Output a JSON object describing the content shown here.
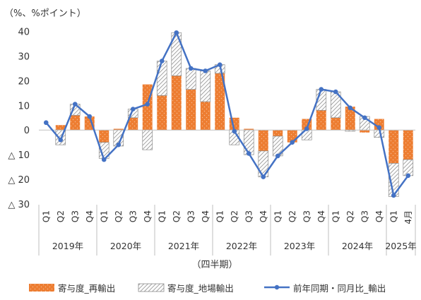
{
  "chart_data": {
    "type": "bar",
    "unit_label": "（%、%ポイント）",
    "xlabel": "（四半期）",
    "ylim": [
      -30,
      40
    ],
    "y_ticks": [
      {
        "value": 40,
        "label": "40"
      },
      {
        "value": 30,
        "label": "30"
      },
      {
        "value": 20,
        "label": "20"
      },
      {
        "value": 10,
        "label": "10"
      },
      {
        "value": 0,
        "label": "0"
      },
      {
        "value": -10,
        "label": "△ 10"
      },
      {
        "value": -20,
        "label": "△ 20"
      },
      {
        "value": -30,
        "label": "△ 30"
      }
    ],
    "categories": [
      "Q1",
      "Q2",
      "Q3",
      "Q4",
      "Q1",
      "Q2",
      "Q3",
      "Q4",
      "Q1",
      "Q2",
      "Q3",
      "Q4",
      "Q1",
      "Q2",
      "Q3",
      "Q4",
      "Q1",
      "Q2",
      "Q3",
      "Q4",
      "Q1",
      "Q2",
      "Q3",
      "Q4",
      "Q1",
      "4月"
    ],
    "year_groups": [
      {
        "label": "2019年",
        "start": 0,
        "count": 4
      },
      {
        "label": "2020年",
        "start": 4,
        "count": 4
      },
      {
        "label": "2021年",
        "start": 8,
        "count": 4
      },
      {
        "label": "2022年",
        "start": 12,
        "count": 4
      },
      {
        "label": "2023年",
        "start": 16,
        "count": 4
      },
      {
        "label": "2024年",
        "start": 20,
        "count": 4
      },
      {
        "label": "2025年",
        "start": 24,
        "count": 2
      }
    ],
    "series": [
      {
        "name": "寄与度_再輸出",
        "kind": "stacked-bar",
        "color": "#ED7D31",
        "values": [
          null,
          2.0,
          6.0,
          5.5,
          -5.0,
          0.5,
          5.0,
          18.5,
          14.0,
          22.0,
          16.5,
          11.5,
          23.0,
          5.0,
          0.5,
          -8.5,
          -2.5,
          -5.0,
          4.5,
          8.0,
          5.0,
          9.5,
          -1.0,
          4.5,
          -13.5,
          -12.0
        ]
      },
      {
        "name": "寄与度_地場輸出",
        "kind": "stacked-bar",
        "color": "#A5A5A5",
        "values": [
          null,
          -6.0,
          4.5,
          0.0,
          -6.5,
          -6.5,
          3.5,
          -8.0,
          14.0,
          17.5,
          8.5,
          12.5,
          3.5,
          -6.0,
          -10.0,
          -10.5,
          -8.0,
          0.0,
          -4.0,
          8.5,
          10.5,
          -0.5,
          5.5,
          -3.0,
          -13.5,
          -6.5
        ]
      },
      {
        "name": "前年同期・同月比_輸出",
        "kind": "line",
        "color": "#4472C4",
        "values": [
          3.0,
          -4.0,
          10.5,
          5.5,
          -12.0,
          -6.0,
          8.5,
          10.5,
          28.0,
          39.5,
          25.0,
          24.0,
          26.5,
          -0.5,
          -9.5,
          -19.0,
          -10.5,
          -5.0,
          0.5,
          16.5,
          15.5,
          9.0,
          5.0,
          1.0,
          -26.5,
          -18.5
        ]
      }
    ]
  }
}
